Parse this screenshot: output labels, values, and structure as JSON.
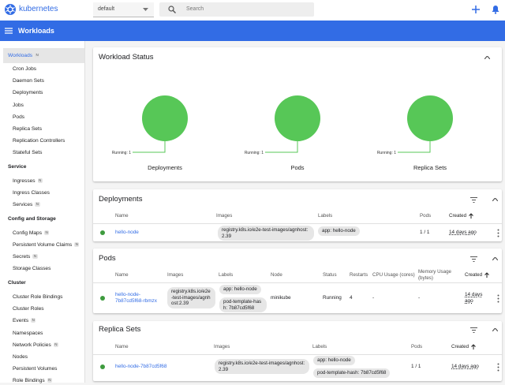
{
  "header": {
    "brand": "kubernetes",
    "namespace": "default",
    "search_placeholder": "Search"
  },
  "toolbar": {
    "title": "Workloads"
  },
  "sidebar": {
    "top": {
      "label": "Workloads",
      "badge": "N"
    },
    "items": [
      {
        "label": "Cron Jobs"
      },
      {
        "label": "Daemon Sets"
      },
      {
        "label": "Deployments"
      },
      {
        "label": "Jobs"
      },
      {
        "label": "Pods"
      },
      {
        "label": "Replica Sets"
      },
      {
        "label": "Replication Controllers"
      },
      {
        "label": "Stateful Sets"
      }
    ],
    "groups": [
      {
        "title": "Service",
        "items": [
          {
            "label": "Ingresses",
            "badge": "N"
          },
          {
            "label": "Ingress Classes"
          },
          {
            "label": "Services",
            "badge": "N"
          }
        ]
      },
      {
        "title": "Config and Storage",
        "items": [
          {
            "label": "Config Maps",
            "badge": "N"
          },
          {
            "label": "Persistent Volume Claims",
            "badge": "N"
          },
          {
            "label": "Secrets",
            "badge": "N"
          },
          {
            "label": "Storage Classes"
          }
        ]
      },
      {
        "title": "Cluster",
        "items": [
          {
            "label": "Cluster Role Bindings"
          },
          {
            "label": "Cluster Roles"
          },
          {
            "label": "Events",
            "badge": "N"
          },
          {
            "label": "Namespaces"
          },
          {
            "label": "Network Policies",
            "badge": "N"
          },
          {
            "label": "Nodes"
          },
          {
            "label": "Persistent Volumes"
          },
          {
            "label": "Role Bindings",
            "badge": "N"
          }
        ]
      }
    ]
  },
  "workload_status": {
    "title": "Workload Status",
    "charts": [
      {
        "name": "Deployments",
        "legend": "Running: 1"
      },
      {
        "name": "Pods",
        "legend": "Running: 1"
      },
      {
        "name": "Replica Sets",
        "legend": "Running: 1"
      }
    ]
  },
  "deployments": {
    "title": "Deployments",
    "columns": [
      "Name",
      "Images",
      "Labels",
      "Pods",
      "Created"
    ],
    "rows": [
      {
        "name": "hello-node",
        "images": [
          "registry.k8s.io/e2e-test-images/agnhost:2.39"
        ],
        "labels": [
          "app: hello-node"
        ],
        "pods": "1 / 1",
        "created": "14 days ago"
      }
    ]
  },
  "pods": {
    "title": "Pods",
    "columns": [
      "Name",
      "Images",
      "Labels",
      "Node",
      "Status",
      "Restarts",
      "CPU Usage (cores)",
      "Memory Usage (bytes)",
      "Created"
    ],
    "rows": [
      {
        "name": "hello-node-7b87cd5f68-rbmzx",
        "images": [
          "registry.k8s.io/e2e-test-images/agnhost:2.39"
        ],
        "labels": [
          "app: hello-node",
          "pod-template-hash: 7b87cd5f68"
        ],
        "node": "minikube",
        "status": "Running",
        "restarts": 4,
        "cpu": "-",
        "memory": "-",
        "created": "14 days ago"
      }
    ]
  },
  "replica_sets": {
    "title": "Replica Sets",
    "columns": [
      "Name",
      "Images",
      "Labels",
      "Pods",
      "Created"
    ],
    "rows": [
      {
        "name": "hello-node-7b87cd5f68",
        "images": [
          "registry.k8s.io/e2e-test-images/agnhost:2.39"
        ],
        "labels": [
          "app: hello-node",
          "pod-template-hash: 7b87cd5f68"
        ],
        "pods": "1 / 1",
        "created": "14 days ago"
      }
    ]
  }
}
